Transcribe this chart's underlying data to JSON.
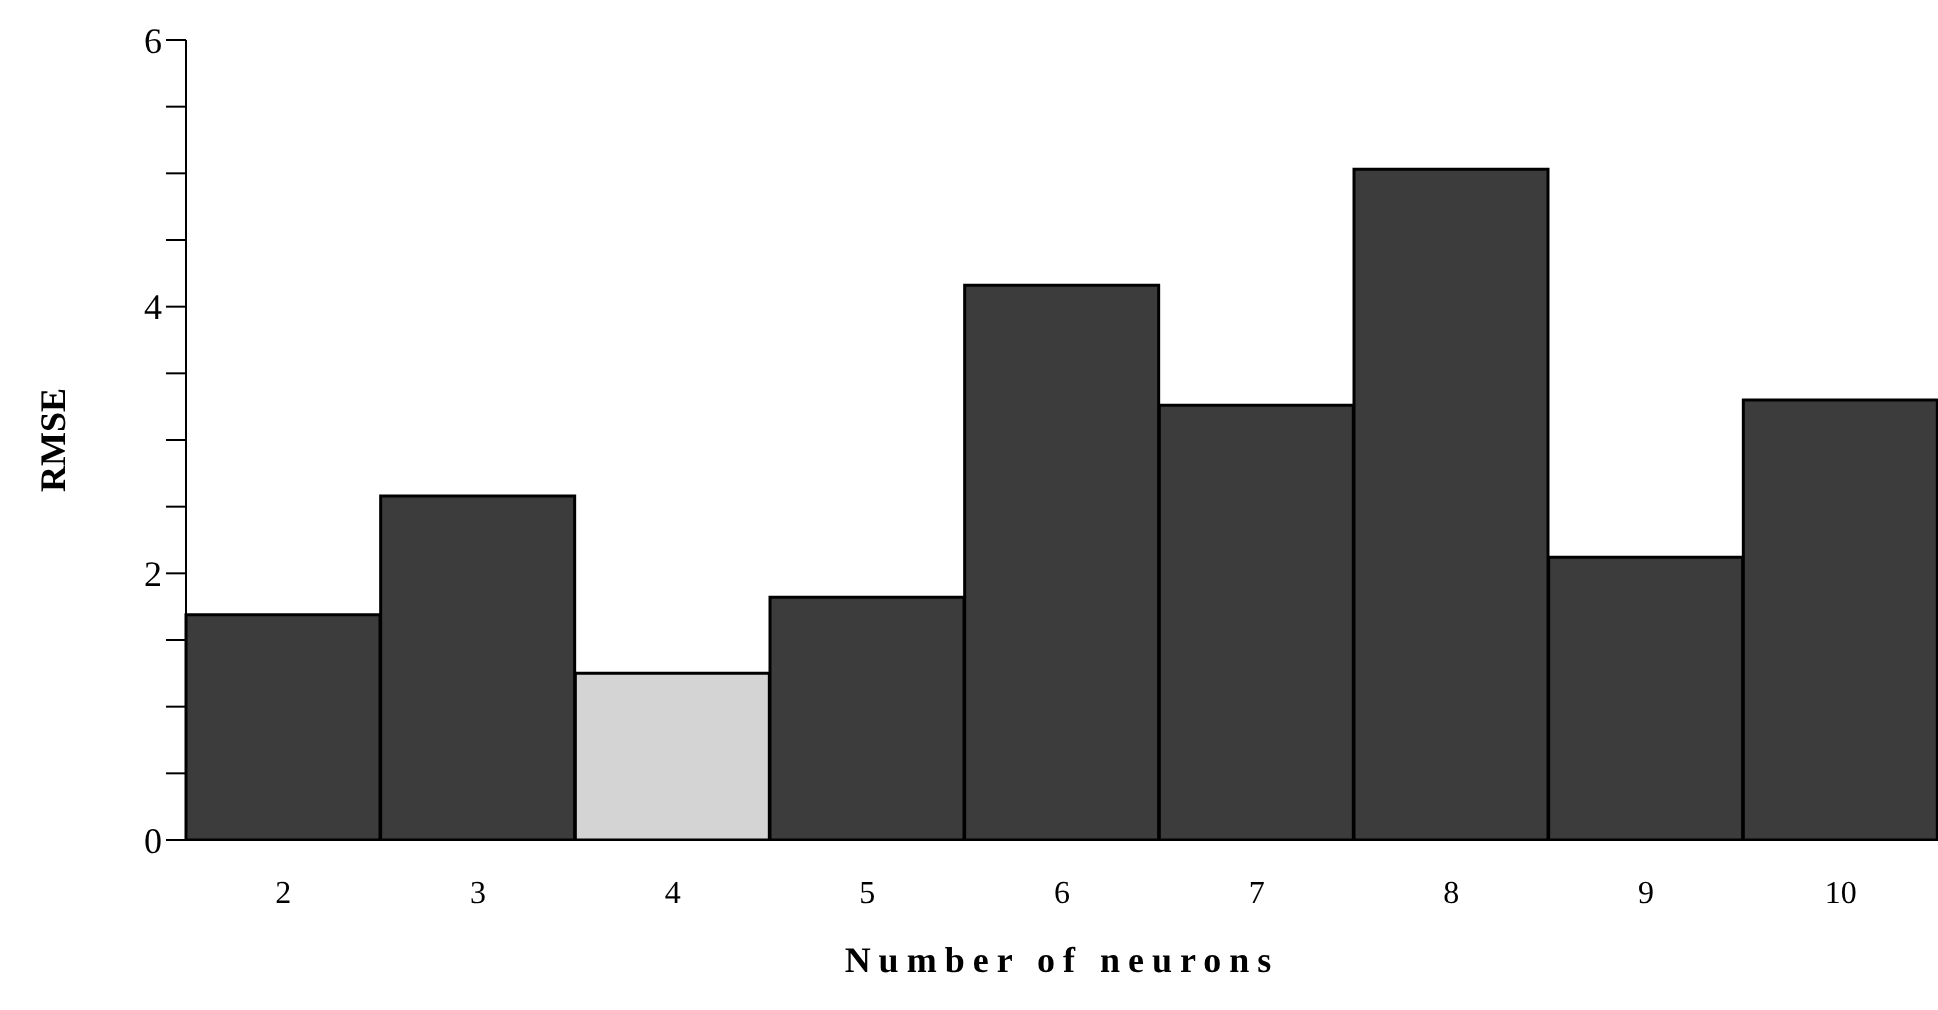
{
  "chart_data": {
    "type": "bar",
    "xlabel": "Number of neurons",
    "ylabel": "RMSE",
    "categories": [
      "2",
      "3",
      "4",
      "5",
      "6",
      "7",
      "8",
      "9",
      "10"
    ],
    "values": [
      1.69,
      2.58,
      1.25,
      1.82,
      4.16,
      3.26,
      5.03,
      2.12,
      3.3
    ],
    "colors": [
      "#3c3c3c",
      "#3c3c3c",
      "#d4d4d4",
      "#3c3c3c",
      "#3c3c3c",
      "#3c3c3c",
      "#3c3c3c",
      "#3c3c3c",
      "#3c3c3c"
    ],
    "ylim": [
      0,
      6
    ],
    "yticks": [
      0,
      {
        "value": 0.5,
        "label": null
      },
      {
        "value": 1,
        "label": null
      },
      {
        "value": 1.5,
        "label": null
      },
      2,
      {
        "value": 2.5,
        "label": null
      },
      {
        "value": 3,
        "label": null
      },
      {
        "value": 3.5,
        "label": null
      },
      4,
      {
        "value": 4.5,
        "label": null
      },
      {
        "value": 5,
        "label": null
      },
      {
        "value": 5.5,
        "label": null
      },
      6
    ],
    "grid": false,
    "legend": false
  }
}
